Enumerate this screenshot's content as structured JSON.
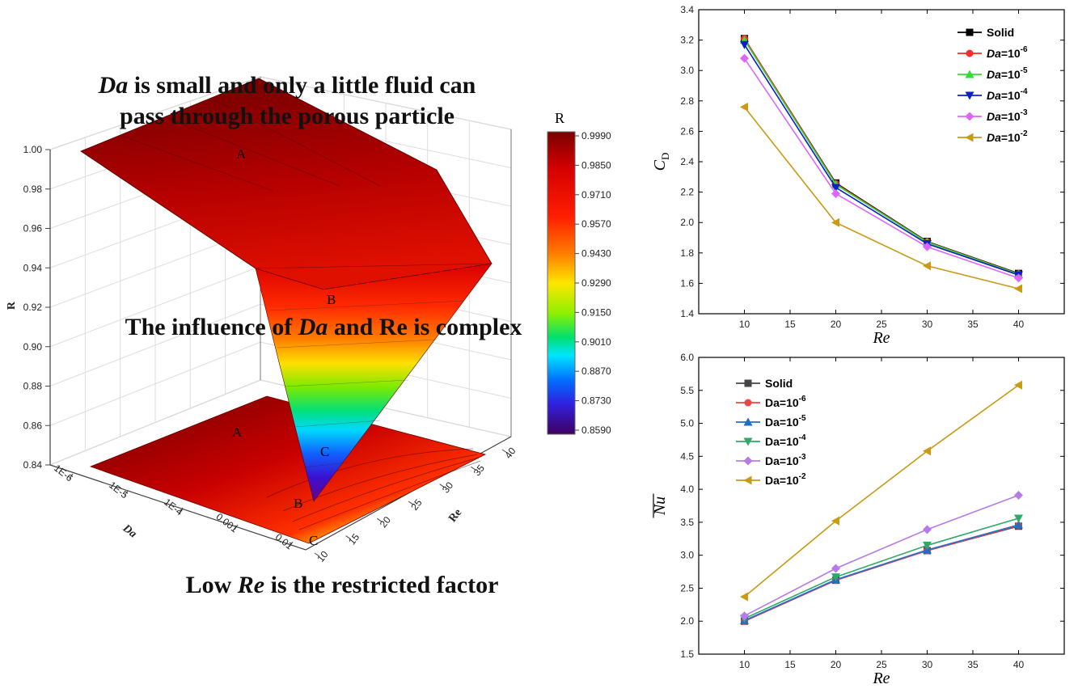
{
  "colors": {
    "solid": "#000000",
    "da6": "#ff2a2a",
    "da5": "#33dd33",
    "da4": "#0a20c8",
    "da3": "#dd66ff",
    "da2": "#c99a12",
    "nu_solid": "#444444",
    "nu_da6": "#ee4444",
    "nu_da5": "#1f6fc8",
    "nu_da4": "#2fa86b",
    "nu_da3": "#b67be8",
    "nu_da2": "#c99a12"
  },
  "surface3d": {
    "annotation_top_line1": "Da is small and only a little fluid can",
    "annotation_top_line2": "pass through the porous particle",
    "annotation_mid": "The influence of Da and Re is complex",
    "annotation_bottom": "Low Re is the restricted factor",
    "z_axis_label": "R",
    "x_axis_label": "Da",
    "y_axis_label": "Re",
    "z_ticks": [
      "0.84",
      "0.86",
      "0.88",
      "0.90",
      "0.92",
      "0.94",
      "0.96",
      "0.98",
      "1.00"
    ],
    "da_ticks": [
      "1E-6",
      "1E-5",
      "1E-4",
      "0.001",
      "0.01"
    ],
    "re_ticks": [
      "10",
      "15",
      "20",
      "25",
      "30",
      "35",
      "40"
    ],
    "point_labels": [
      "A",
      "B",
      "C",
      "A",
      "B",
      "C"
    ],
    "colorbar_title": "R",
    "colorbar_ticks": [
      "0.9990",
      "0.9850",
      "0.9710",
      "0.9570",
      "0.9430",
      "0.9290",
      "0.9150",
      "0.9010",
      "0.8870",
      "0.8730",
      "0.8590"
    ]
  },
  "chart_data": [
    {
      "type": "line",
      "xlabel": "Re",
      "ylabel": "C_D",
      "ylabel_main": "C",
      "ylabel_sub": "D",
      "xlim": [
        5,
        45
      ],
      "ylim": [
        1.4,
        3.4
      ],
      "x_ticks": [
        10,
        15,
        20,
        25,
        30,
        35,
        40
      ],
      "y_ticks": [
        "1.4",
        "1.6",
        "1.8",
        "2.0",
        "2.2",
        "2.4",
        "2.6",
        "2.8",
        "3.0",
        "3.2",
        "3.4"
      ],
      "x": [
        10,
        20,
        30,
        40
      ],
      "legend": "top-right",
      "series": [
        {
          "name": "Solid",
          "label_base": "Solid",
          "label_exp": "",
          "color_key": "solid",
          "marker": "square",
          "values": [
            3.21,
            2.26,
            1.875,
            1.665
          ]
        },
        {
          "name": "Da=10-6",
          "label_base": "Da=10",
          "label_exp": "-6",
          "color_key": "da6",
          "marker": "circle",
          "values": [
            3.21,
            2.255,
            1.872,
            1.662
          ]
        },
        {
          "name": "Da=10-5",
          "label_base": "Da=10",
          "label_exp": "-5",
          "color_key": "da5",
          "marker": "triangle-up",
          "values": [
            3.2,
            2.25,
            1.87,
            1.66
          ]
        },
        {
          "name": "Da=10-4",
          "label_base": "Da=10",
          "label_exp": "-4",
          "color_key": "da4",
          "marker": "triangle-down",
          "values": [
            3.17,
            2.23,
            1.86,
            1.655
          ]
        },
        {
          "name": "Da=10-3",
          "label_base": "Da=10",
          "label_exp": "-3",
          "color_key": "da3",
          "marker": "diamond",
          "values": [
            3.08,
            2.19,
            1.84,
            1.635
          ]
        },
        {
          "name": "Da=10-2",
          "label_base": "Da=10",
          "label_exp": "-2",
          "color_key": "da2",
          "marker": "triangle-left",
          "values": [
            2.76,
            2.0,
            1.715,
            1.565
          ]
        }
      ]
    },
    {
      "type": "line",
      "xlabel": "Re",
      "ylabel": "Nu",
      "xlim": [
        5,
        45
      ],
      "ylim": [
        1.5,
        6.0
      ],
      "x_ticks": [
        10,
        15,
        20,
        25,
        30,
        35,
        40
      ],
      "y_ticks": [
        "1.5",
        "2.0",
        "2.5",
        "3.0",
        "3.5",
        "4.0",
        "4.5",
        "5.0",
        "5.5",
        "6.0"
      ],
      "x": [
        10,
        20,
        30,
        40
      ],
      "legend": "top-left",
      "series": [
        {
          "name": "Solid",
          "label_base": "Solid",
          "label_exp": "",
          "color_key": "nu_solid",
          "marker": "square",
          "values": [
            2.0,
            2.62,
            3.07,
            3.44
          ]
        },
        {
          "name": "Da=10-6",
          "label_base": "Da=10",
          "label_exp": "-6",
          "color_key": "nu_da6",
          "marker": "circle",
          "values": [
            2.0,
            2.62,
            3.07,
            3.45
          ]
        },
        {
          "name": "Da=10-5",
          "label_base": "Da=10",
          "label_exp": "-5",
          "color_key": "nu_da5",
          "marker": "triangle-up",
          "values": [
            2.01,
            2.63,
            3.08,
            3.46
          ]
        },
        {
          "name": "Da=10-4",
          "label_base": "Da=10",
          "label_exp": "-4",
          "color_key": "nu_da4",
          "marker": "triangle-down",
          "values": [
            2.04,
            2.67,
            3.15,
            3.56
          ]
        },
        {
          "name": "Da=10-3",
          "label_base": "Da=10",
          "label_exp": "-3",
          "color_key": "nu_da3",
          "marker": "diamond",
          "values": [
            2.08,
            2.8,
            3.39,
            3.91
          ]
        },
        {
          "name": "Da=10-2",
          "label_base": "Da=10",
          "label_exp": "-2",
          "color_key": "nu_da2",
          "marker": "triangle-left",
          "values": [
            2.37,
            3.52,
            4.58,
            5.58
          ]
        }
      ]
    }
  ]
}
